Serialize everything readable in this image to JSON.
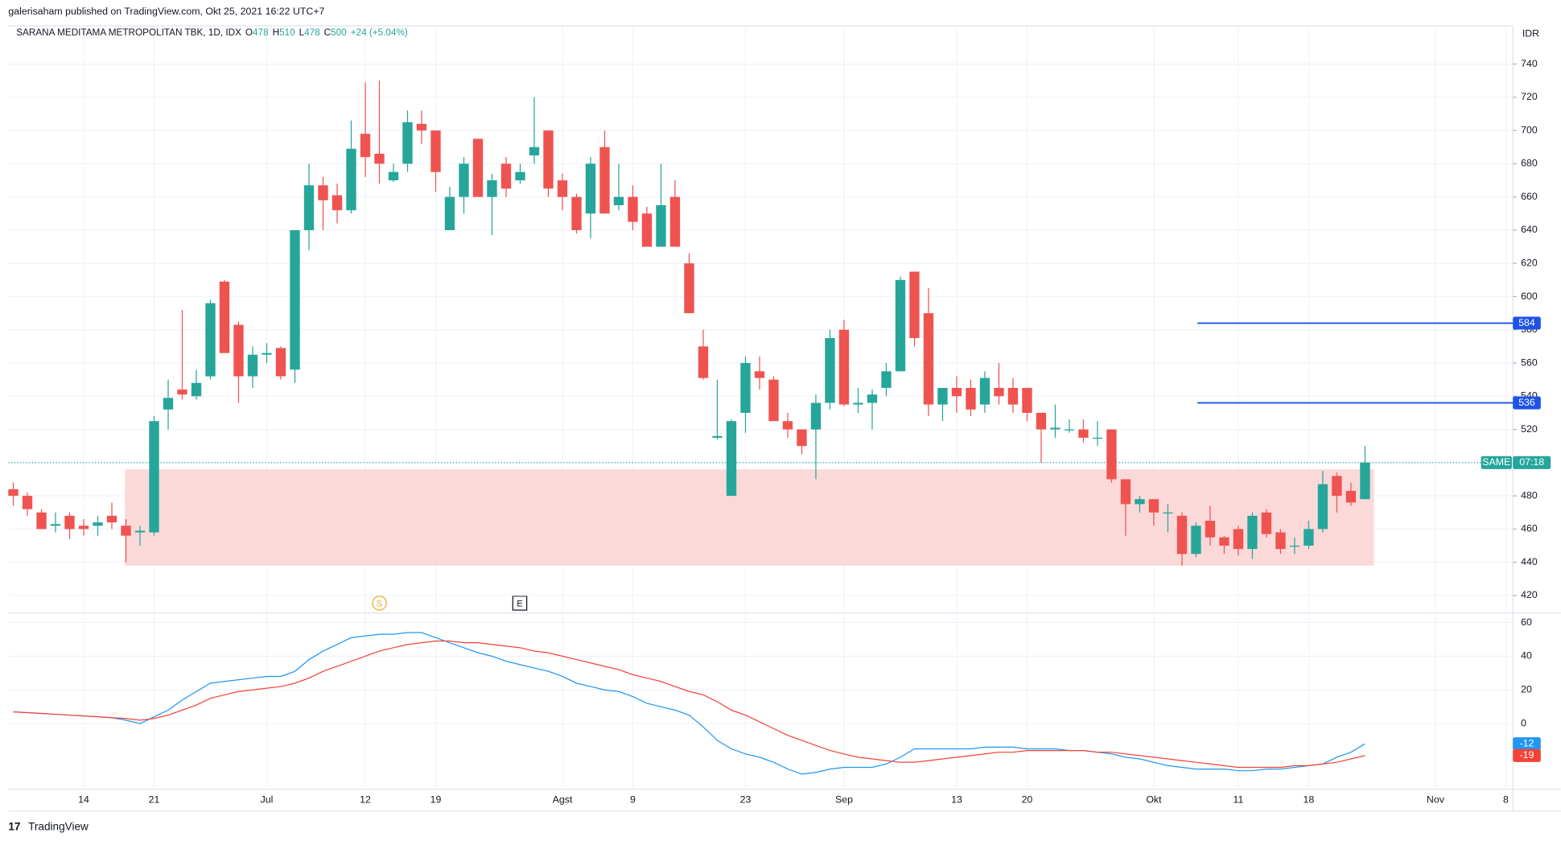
{
  "chart_data": {
    "type": "candlestick",
    "header": "galerisaham published on TradingView.com, Okt 25, 2021 16:22 UTC+7",
    "title": "SARANA MEDITAMA METROPOLITAN TBK, 1D, IDX",
    "legend_keys": [
      "O",
      "H",
      "L",
      "C"
    ],
    "change": "+24 (+5.04%)",
    "currency": "IDR",
    "symbol": "SAME",
    "countdown": "07:18",
    "events": [
      "S",
      "E"
    ],
    "branding": "TradingView",
    "up_color": "#26a69a",
    "down_color": "#ef5350",
    "categories": [
      null,
      null,
      null,
      null,
      null,
      "14",
      null,
      null,
      null,
      null,
      "21",
      null,
      null,
      null,
      null,
      null,
      null,
      null,
      "Jul",
      null,
      null,
      null,
      null,
      null,
      null,
      "12",
      null,
      null,
      null,
      null,
      "19",
      null,
      null,
      null,
      null,
      null,
      null,
      null,
      null,
      "Agst",
      null,
      null,
      null,
      null,
      "9",
      null,
      null,
      null,
      null,
      null,
      null,
      null,
      "23",
      null,
      null,
      null,
      null,
      null,
      null,
      "Sep",
      null,
      null,
      null,
      null,
      null,
      null,
      null,
      "13",
      null,
      null,
      null,
      null,
      "20",
      null,
      null,
      null,
      null,
      null,
      null,
      null,
      null,
      "Okt",
      null,
      null,
      null,
      null,
      null,
      "11",
      null,
      null,
      null,
      null,
      "18",
      null,
      null,
      null,
      null,
      null,
      null,
      null,
      null,
      "Nov",
      null,
      null,
      null,
      null,
      "8"
    ],
    "open": [
      484,
      480,
      470,
      462,
      468,
      462,
      462,
      468,
      462,
      458,
      458,
      532,
      544,
      540,
      552,
      609,
      583,
      552,
      565,
      569,
      556,
      640,
      667,
      661,
      652,
      698,
      686,
      670,
      680,
      704,
      700,
      640,
      660,
      695,
      660,
      680,
      670,
      685,
      700,
      670,
      660,
      650,
      690,
      655,
      660,
      650,
      630,
      660,
      620,
      570,
      515,
      480,
      530,
      555,
      550,
      525,
      520,
      520,
      536,
      580,
      535,
      536,
      545,
      555,
      615,
      590,
      535,
      545,
      545,
      535,
      545,
      545,
      545,
      530,
      520,
      520,
      520,
      515,
      520,
      490,
      475,
      478,
      470,
      468,
      445,
      465,
      455,
      460,
      448,
      470,
      458,
      450,
      450,
      460,
      492,
      483,
      478,
      null,
      null,
      null,
      null,
      null,
      null,
      null,
      null,
      null,
      null
    ],
    "high": [
      488,
      482,
      472,
      470,
      470,
      466,
      468,
      476,
      466,
      462,
      528,
      550,
      592,
      556,
      598,
      610,
      585,
      570,
      572,
      570,
      640,
      680,
      672,
      668,
      706,
      729,
      730,
      680,
      712,
      712,
      700,
      666,
      684,
      695,
      674,
      684,
      680,
      720,
      700,
      674,
      662,
      684,
      700,
      680,
      667,
      654,
      680,
      670,
      626,
      580,
      550,
      526,
      564,
      564,
      552,
      530,
      520,
      541,
      580,
      586,
      545,
      544,
      560,
      612,
      615,
      605,
      545,
      552,
      550,
      555,
      560,
      551,
      545,
      530,
      535,
      526,
      526,
      525,
      520,
      490,
      480,
      478,
      475,
      470,
      464,
      474,
      456,
      462,
      470,
      472,
      460,
      455,
      465,
      495,
      494,
      488,
      510,
      null,
      null,
      null,
      null,
      null,
      null,
      null,
      null,
      null,
      null
    ],
    "low": [
      474,
      468,
      460,
      458,
      454,
      456,
      456,
      460,
      440,
      450,
      456,
      520,
      538,
      538,
      550,
      566,
      536,
      545,
      560,
      550,
      548,
      628,
      640,
      644,
      650,
      672,
      668,
      669,
      675,
      692,
      663,
      640,
      650,
      660,
      637,
      660,
      668,
      680,
      660,
      652,
      638,
      635,
      650,
      652,
      640,
      630,
      630,
      630,
      590,
      550,
      514,
      480,
      518,
      544,
      525,
      515,
      505,
      490,
      532,
      534,
      530,
      520,
      540,
      555,
      570,
      528,
      525,
      530,
      528,
      530,
      535,
      530,
      525,
      500,
      515,
      518,
      512,
      510,
      488,
      456,
      470,
      462,
      458,
      438,
      443,
      450,
      445,
      444,
      442,
      455,
      445,
      445,
      448,
      458,
      470,
      474,
      478,
      null,
      null,
      null,
      null,
      null,
      null,
      null,
      null,
      null,
      null
    ],
    "close": [
      480,
      472,
      460,
      463,
      460,
      460,
      464,
      464,
      456,
      459,
      525,
      539,
      541,
      548,
      596,
      566,
      552,
      565,
      566,
      552,
      640,
      667,
      658,
      652,
      689,
      684,
      680,
      675,
      705,
      700,
      675,
      660,
      680,
      660,
      670,
      665,
      675,
      690,
      665,
      660,
      640,
      680,
      650,
      660,
      645,
      630,
      655,
      630,
      590,
      551,
      516,
      525,
      560,
      551,
      525,
      520,
      510,
      536,
      575,
      535,
      536,
      541,
      555,
      610,
      575,
      535,
      545,
      540,
      532,
      551,
      540,
      535,
      530,
      520,
      521,
      520,
      515,
      515,
      490,
      475,
      478,
      470,
      470,
      445,
      462,
      455,
      450,
      448,
      468,
      457,
      448,
      450,
      460,
      487,
      480,
      476,
      500,
      null,
      null,
      null,
      null,
      null,
      null,
      null,
      null,
      null,
      null
    ],
    "ylim": [
      410,
      763
    ],
    "yticks": [
      420,
      440,
      460,
      480,
      500,
      520,
      540,
      560,
      580,
      600,
      620,
      640,
      660,
      680,
      700,
      720,
      740
    ],
    "grid": true,
    "zone": {
      "low": 438,
      "high": 496,
      "color": "#fcd5d5"
    },
    "hlines": [
      584,
      536
    ],
    "hline_color": "#1e53e5",
    "indicator": {
      "ylim": [
        -39,
        65
      ],
      "yticks": [
        0,
        20,
        40,
        60
      ],
      "series": [
        {
          "color": "#2196f3",
          "values": [
            7,
            6.5,
            6,
            5.5,
            5,
            4.5,
            4,
            3.5,
            2,
            0,
            4,
            8,
            14,
            19,
            24,
            25,
            26,
            27,
            28,
            28,
            31,
            38,
            43,
            47,
            51,
            52,
            53,
            53,
            54,
            54,
            51,
            48,
            45,
            42,
            40,
            37,
            35,
            33,
            31,
            28,
            24,
            22,
            20,
            19,
            16,
            12,
            10,
            8,
            5,
            -2,
            -10,
            -15,
            -18,
            -20,
            -23,
            -27,
            -30,
            -29,
            -27,
            -26,
            -26,
            -26,
            -24,
            -20,
            -15,
            -15,
            -15,
            -15,
            -15,
            -14,
            -14,
            -14,
            -15,
            -15,
            -15,
            -16,
            -16,
            -17,
            -18,
            -20,
            -21,
            -23,
            -25,
            -26,
            -27,
            -27,
            -27,
            -28,
            -28,
            -27,
            -27,
            -26,
            -25,
            -24,
            -20,
            -17,
            -12,
            null,
            null,
            null,
            null,
            null,
            null,
            null,
            null,
            null,
            null
          ]
        },
        {
          "color": "#f44336",
          "values": [
            7,
            6.5,
            6,
            5.5,
            5,
            4.5,
            4,
            3.5,
            3,
            2,
            3,
            5,
            8,
            11,
            15,
            17,
            19,
            20,
            21,
            22,
            24,
            27,
            31,
            34,
            37,
            40,
            43,
            45,
            47,
            48,
            49,
            49,
            48,
            48,
            47,
            46,
            45,
            43,
            42,
            40,
            38,
            36,
            34,
            32,
            29,
            27,
            25,
            22,
            19,
            17,
            13,
            8,
            5,
            1,
            -3,
            -7,
            -10,
            -13,
            -16,
            -18,
            -20,
            -21,
            -22,
            -23,
            -23,
            -22,
            -21,
            -20,
            -19,
            -18,
            -17,
            -17,
            -16,
            -16,
            -16,
            -16,
            -16,
            -17,
            -17,
            -18,
            -19,
            -20,
            -21,
            -22,
            -23,
            -24,
            -25,
            -26,
            -26,
            -26,
            -26,
            -25,
            -25,
            -24,
            -23,
            -21,
            -19,
            null,
            null,
            null,
            null,
            null,
            null,
            null,
            null,
            null,
            null
          ]
        }
      ]
    }
  }
}
